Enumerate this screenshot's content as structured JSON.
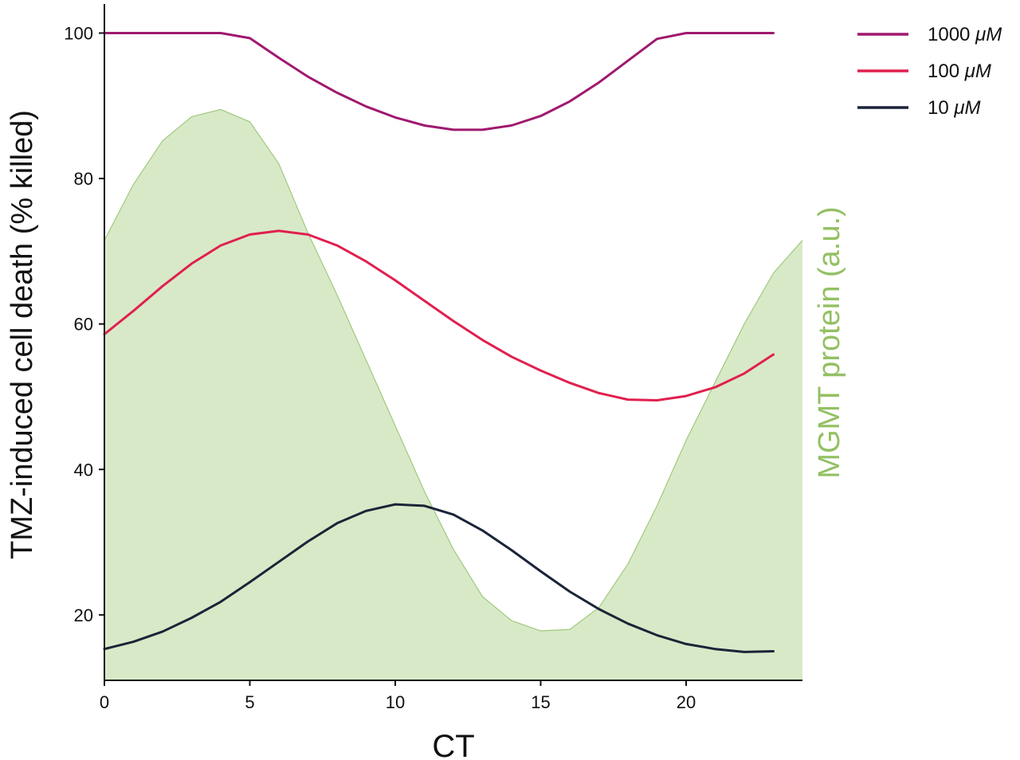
{
  "chart_data": {
    "type": "line",
    "xlabel": "CT",
    "ylabel": "TMZ-induced cell death (% killed)",
    "y2label": "MGMT protein (a.u.)",
    "xlim": [
      0,
      24
    ],
    "ylim": [
      11,
      104
    ],
    "xticks": [
      0,
      5,
      10,
      15,
      20
    ],
    "yticks": [
      20,
      40,
      60,
      80,
      100
    ],
    "legend_position": "top-right",
    "x": [
      0,
      1,
      2,
      3,
      4,
      5,
      6,
      7,
      8,
      9,
      10,
      11,
      12,
      13,
      14,
      15,
      16,
      17,
      18,
      19,
      20,
      21,
      22,
      23
    ],
    "series": [
      {
        "name": "1000 μM",
        "name_prefix": "1000 ",
        "name_unit": "μM",
        "color": "#a0196f",
        "values": [
          100,
          100,
          100,
          100,
          100,
          99.3,
          96.6,
          94.0,
          91.8,
          89.9,
          88.4,
          87.3,
          86.7,
          86.7,
          87.3,
          88.6,
          90.6,
          93.2,
          96.2,
          99.2,
          100,
          100,
          100,
          100
        ]
      },
      {
        "name": "100 μM",
        "name_prefix": "100 ",
        "name_unit": "μM",
        "color": "#e0204f",
        "values": [
          58.6,
          61.8,
          65.2,
          68.3,
          70.8,
          72.3,
          72.8,
          72.3,
          70.8,
          68.6,
          66.0,
          63.2,
          60.4,
          57.8,
          55.5,
          53.6,
          51.9,
          50.5,
          49.6,
          49.5,
          50.1,
          51.3,
          53.2,
          55.8
        ]
      },
      {
        "name": "10 μM",
        "name_prefix": "10 ",
        "name_unit": "μM",
        "color": "#1b2438",
        "values": [
          15.3,
          16.3,
          17.7,
          19.6,
          21.8,
          24.5,
          27.3,
          30.1,
          32.6,
          34.3,
          35.2,
          35.0,
          33.8,
          31.6,
          28.9,
          26.0,
          23.2,
          20.8,
          18.8,
          17.2,
          16.0,
          15.3,
          14.9,
          15.0
        ]
      }
    ],
    "area": {
      "name": "MGMT protein",
      "color": "#d8e9c8",
      "edge_color": "#9fca7c",
      "x": [
        0,
        1,
        2,
        3,
        4,
        5,
        6,
        7,
        8,
        9,
        10,
        11,
        12,
        13,
        14,
        15,
        16,
        17,
        18,
        19,
        20,
        21,
        22,
        23,
        24
      ],
      "values": [
        71.5,
        79.2,
        85.2,
        88.5,
        89.5,
        87.8,
        82.0,
        72.5,
        64.0,
        55.0,
        46.0,
        37.0,
        29.0,
        22.5,
        19.2,
        17.8,
        18.0,
        21.0,
        27.0,
        35.0,
        44.0,
        52.0,
        60.0,
        67.0,
        71.5
      ]
    }
  }
}
